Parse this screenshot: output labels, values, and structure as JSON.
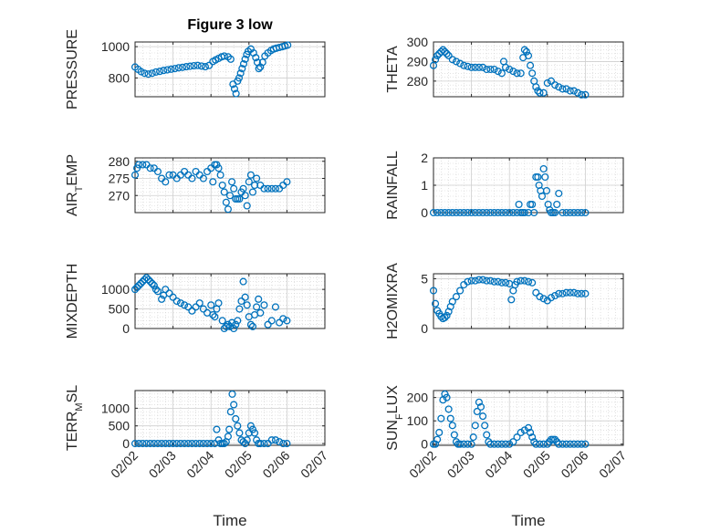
{
  "chart_data": [
    {
      "type": "scatter",
      "title": "Figure 3 low",
      "ylabel": "PRESSURE",
      "xlabel": "",
      "ylim": [
        680,
        1030
      ],
      "yticks": [
        800,
        1000
      ],
      "ytick_labels": [
        "800",
        "1000"
      ],
      "xlim": [
        "02/02",
        "02/07"
      ],
      "marker": "circle",
      "color": "#0072BD",
      "x": [
        0.0,
        0.08,
        0.16,
        0.25,
        0.35,
        0.45,
        0.55,
        0.65,
        0.75,
        0.85,
        0.95,
        1.05,
        1.15,
        1.25,
        1.35,
        1.45,
        1.55,
        1.65,
        1.75,
        1.85,
        1.95,
        2.05,
        2.12,
        2.2,
        2.28,
        2.35,
        2.45,
        2.52,
        2.58,
        2.62,
        2.66,
        2.7,
        2.74,
        2.78,
        2.82,
        2.86,
        2.9,
        2.94,
        2.98,
        3.05,
        3.12,
        3.18,
        3.22,
        3.26,
        3.3,
        3.36,
        3.42,
        3.5,
        3.58,
        3.65,
        3.72,
        3.8,
        3.88,
        3.95,
        4.02
      ],
      "y": [
        870,
        855,
        840,
        830,
        825,
        830,
        838,
        842,
        848,
        852,
        856,
        860,
        865,
        868,
        872,
        875,
        878,
        880,
        876,
        872,
        880,
        905,
        915,
        925,
        935,
        940,
        935,
        920,
        760,
        730,
        700,
        780,
        800,
        830,
        860,
        890,
        920,
        950,
        970,
        985,
        960,
        930,
        900,
        860,
        870,
        900,
        940,
        960,
        975,
        985,
        990,
        995,
        1000,
        1005,
        1010
      ]
    },
    {
      "type": "scatter",
      "title": "",
      "ylabel": "THETA",
      "xlabel": "",
      "ylim": [
        272,
        300
      ],
      "yticks": [
        280,
        290,
        300
      ],
      "ytick_labels": [
        "280",
        "290",
        "300"
      ],
      "xlim": [
        "02/02",
        "02/07"
      ],
      "marker": "circle",
      "color": "#0072BD",
      "x": [
        0.0,
        0.05,
        0.1,
        0.15,
        0.2,
        0.25,
        0.3,
        0.35,
        0.4,
        0.5,
        0.6,
        0.7,
        0.8,
        0.9,
        1.0,
        1.1,
        1.2,
        1.3,
        1.4,
        1.5,
        1.6,
        1.7,
        1.8,
        1.85,
        1.9,
        2.0,
        2.1,
        2.2,
        2.3,
        2.36,
        2.4,
        2.45,
        2.5,
        2.55,
        2.6,
        2.65,
        2.7,
        2.75,
        2.8,
        2.9,
        3.0,
        3.1,
        3.2,
        3.3,
        3.4,
        3.5,
        3.6,
        3.7,
        3.8,
        3.9,
        4.0
      ],
      "y": [
        288,
        291,
        293,
        294,
        295,
        296,
        295,
        294,
        293,
        291,
        290,
        289,
        288,
        287.5,
        287,
        287,
        287,
        287,
        286,
        286,
        286,
        285,
        284,
        290,
        287,
        286,
        285,
        284,
        284,
        292,
        296,
        295,
        293,
        288,
        284,
        280,
        277,
        275,
        274,
        274,
        279,
        280,
        278,
        277,
        276,
        276,
        275,
        275,
        274,
        273,
        273
      ]
    },
    {
      "type": "scatter",
      "title": "",
      "ylabel": "AIR_TEMP",
      "xlabel": "",
      "ylim": [
        265,
        281
      ],
      "yticks": [
        270,
        275,
        280
      ],
      "ytick_labels": [
        "270",
        "275",
        "280"
      ],
      "xlim": [
        "02/02",
        "02/07"
      ],
      "marker": "circle",
      "color": "#0072BD",
      "x": [
        0.0,
        0.05,
        0.1,
        0.2,
        0.3,
        0.4,
        0.5,
        0.6,
        0.7,
        0.8,
        0.9,
        1.0,
        1.1,
        1.2,
        1.3,
        1.4,
        1.5,
        1.6,
        1.7,
        1.8,
        1.9,
        2.0,
        2.05,
        2.1,
        2.15,
        2.2,
        2.25,
        2.3,
        2.35,
        2.4,
        2.45,
        2.5,
        2.55,
        2.6,
        2.65,
        2.7,
        2.75,
        2.8,
        2.85,
        2.9,
        2.95,
        3.0,
        3.05,
        3.1,
        3.15,
        3.2,
        3.3,
        3.4,
        3.5,
        3.6,
        3.7,
        3.8,
        3.9,
        4.0
      ],
      "y": [
        276,
        278,
        279,
        279,
        279,
        278,
        278,
        277,
        275,
        274,
        276,
        276,
        275,
        276,
        277,
        276,
        275,
        277,
        276,
        275,
        277,
        278,
        274,
        279,
        279,
        278,
        276,
        273,
        271,
        268,
        266,
        270,
        274,
        272,
        269,
        269,
        269,
        271,
        272,
        270,
        267,
        274,
        276,
        271,
        273,
        275,
        273,
        272,
        272,
        272,
        272,
        272,
        273,
        274
      ]
    },
    {
      "type": "scatter",
      "title": "",
      "ylabel": "RAINFALL",
      "xlabel": "",
      "ylim": [
        0,
        2
      ],
      "yticks": [
        0,
        1,
        2
      ],
      "ytick_labels": [
        "0",
        "1",
        "2"
      ],
      "xlim": [
        "02/02",
        "02/07"
      ],
      "marker": "circle",
      "color": "#0072BD",
      "x": [
        0.0,
        0.1,
        0.2,
        0.3,
        0.4,
        0.5,
        0.6,
        0.7,
        0.8,
        0.9,
        1.0,
        1.1,
        1.2,
        1.3,
        1.4,
        1.5,
        1.6,
        1.7,
        1.8,
        1.9,
        2.0,
        2.1,
        2.2,
        2.25,
        2.3,
        2.35,
        2.4,
        2.5,
        2.55,
        2.6,
        2.65,
        2.7,
        2.75,
        2.78,
        2.82,
        2.86,
        2.9,
        2.94,
        2.98,
        3.02,
        3.06,
        3.1,
        3.15,
        3.2,
        3.25,
        3.3,
        3.4,
        3.5,
        3.6,
        3.7,
        3.8,
        3.9,
        4.0
      ],
      "y": [
        0,
        0,
        0,
        0,
        0,
        0,
        0,
        0,
        0,
        0,
        0,
        0,
        0,
        0,
        0,
        0,
        0,
        0,
        0,
        0,
        0,
        0,
        0,
        0.3,
        0,
        0,
        0,
        0,
        0.3,
        0.3,
        0,
        1.3,
        1.3,
        1.0,
        0.8,
        0.6,
        1.6,
        1.3,
        0.8,
        0.3,
        0.1,
        0,
        0,
        0,
        0.3,
        0.7,
        0,
        0,
        0,
        0,
        0,
        0,
        0
      ]
    },
    {
      "type": "scatter",
      "title": "",
      "ylabel": "MIXDEPTH",
      "xlabel": "",
      "ylim": [
        0,
        1400
      ],
      "yticks": [
        0,
        500,
        1000
      ],
      "ytick_labels": [
        "0",
        "500",
        "1000"
      ],
      "xlim": [
        "02/02",
        "02/07"
      ],
      "marker": "circle",
      "color": "#0072BD",
      "x": [
        0.0,
        0.05,
        0.1,
        0.15,
        0.2,
        0.25,
        0.3,
        0.35,
        0.4,
        0.45,
        0.5,
        0.55,
        0.6,
        0.7,
        0.75,
        0.8,
        0.9,
        1.0,
        1.1,
        1.2,
        1.3,
        1.4,
        1.5,
        1.6,
        1.7,
        1.8,
        1.9,
        2.0,
        2.05,
        2.1,
        2.15,
        2.2,
        2.3,
        2.35,
        2.4,
        2.45,
        2.5,
        2.55,
        2.6,
        2.65,
        2.7,
        2.75,
        2.8,
        2.85,
        2.9,
        2.95,
        3.0,
        3.05,
        3.1,
        3.15,
        3.2,
        3.25,
        3.3,
        3.4,
        3.5,
        3.6,
        3.7,
        3.8,
        3.9,
        4.0
      ],
      "y": [
        1000,
        1050,
        1100,
        1150,
        1200,
        1250,
        1300,
        1250,
        1200,
        1150,
        1100,
        1000,
        950,
        750,
        850,
        1000,
        900,
        800,
        700,
        650,
        600,
        550,
        450,
        550,
        650,
        500,
        400,
        600,
        350,
        300,
        500,
        650,
        200,
        0,
        50,
        100,
        50,
        150,
        0,
        100,
        200,
        500,
        700,
        1200,
        800,
        600,
        300,
        100,
        50,
        350,
        550,
        750,
        400,
        600,
        100,
        200,
        550,
        150,
        250,
        200
      ]
    },
    {
      "type": "scatter",
      "title": "",
      "ylabel": "H2OMIXRA",
      "xlabel": "",
      "ylim": [
        0,
        5.5
      ],
      "yticks": [
        0,
        5
      ],
      "ytick_labels": [
        "0",
        "5"
      ],
      "xlim": [
        "02/02",
        "02/07"
      ],
      "marker": "circle",
      "color": "#0072BD",
      "x": [
        0.0,
        0.05,
        0.1,
        0.15,
        0.2,
        0.25,
        0.3,
        0.35,
        0.4,
        0.45,
        0.5,
        0.6,
        0.7,
        0.8,
        0.9,
        1.0,
        1.1,
        1.2,
        1.3,
        1.4,
        1.5,
        1.6,
        1.7,
        1.8,
        1.9,
        2.0,
        2.05,
        2.1,
        2.15,
        2.2,
        2.3,
        2.4,
        2.5,
        2.6,
        2.7,
        2.8,
        2.9,
        3.0,
        3.1,
        3.2,
        3.3,
        3.4,
        3.5,
        3.6,
        3.7,
        3.8,
        3.9,
        4.0
      ],
      "y": [
        3.8,
        2.5,
        1.8,
        1.5,
        1.2,
        1.0,
        1.1,
        1.3,
        1.7,
        2.2,
        2.7,
        3.2,
        3.8,
        4.4,
        4.7,
        4.8,
        4.8,
        4.9,
        4.9,
        4.8,
        4.8,
        4.7,
        4.7,
        4.6,
        4.6,
        4.5,
        2.9,
        3.8,
        4.4,
        4.7,
        4.8,
        4.8,
        4.7,
        4.6,
        3.6,
        3.2,
        3.0,
        2.8,
        3.1,
        3.3,
        3.5,
        3.5,
        3.6,
        3.6,
        3.6,
        3.5,
        3.5,
        3.5
      ]
    },
    {
      "type": "scatter",
      "title": "",
      "ylabel": "TERR_MSL",
      "xlabel": "Time",
      "ylim": [
        -50,
        1500
      ],
      "yticks": [
        0,
        500,
        1000
      ],
      "ytick_labels": [
        "0",
        "500",
        "1000"
      ],
      "xlim": [
        "02/02",
        "02/07"
      ],
      "xticks": [
        "02/02",
        "02/03",
        "02/04",
        "02/05",
        "02/06",
        "02/07"
      ],
      "marker": "circle",
      "color": "#0072BD",
      "x": [
        0.0,
        0.1,
        0.2,
        0.3,
        0.4,
        0.5,
        0.6,
        0.7,
        0.8,
        0.9,
        1.0,
        1.1,
        1.2,
        1.3,
        1.4,
        1.5,
        1.6,
        1.7,
        1.8,
        1.9,
        2.0,
        2.1,
        2.15,
        2.2,
        2.25,
        2.3,
        2.35,
        2.4,
        2.45,
        2.48,
        2.52,
        2.56,
        2.6,
        2.65,
        2.7,
        2.75,
        2.8,
        2.85,
        2.9,
        2.95,
        3.0,
        3.05,
        3.1,
        3.15,
        3.2,
        3.25,
        3.3,
        3.4,
        3.5,
        3.6,
        3.7,
        3.8,
        3.9,
        4.0
      ],
      "y": [
        0,
        0,
        0,
        0,
        0,
        0,
        0,
        0,
        0,
        0,
        0,
        0,
        0,
        0,
        0,
        0,
        0,
        0,
        0,
        0,
        0,
        0,
        400,
        100,
        0,
        0,
        0,
        50,
        200,
        400,
        900,
        1400,
        1100,
        700,
        500,
        300,
        100,
        50,
        0,
        100,
        300,
        500,
        400,
        300,
        100,
        0,
        0,
        0,
        0,
        100,
        100,
        50,
        0,
        0
      ]
    },
    {
      "type": "scatter",
      "title": "",
      "ylabel": "SUN_FLUX",
      "xlabel": "Time",
      "ylim": [
        -5,
        230
      ],
      "yticks": [
        0,
        100,
        200
      ],
      "ytick_labels": [
        "0",
        "100",
        "200"
      ],
      "xlim": [
        "02/02",
        "02/07"
      ],
      "xticks": [
        "02/02",
        "02/03",
        "02/04",
        "02/05",
        "02/06",
        "02/07"
      ],
      "marker": "circle",
      "color": "#0072BD",
      "x": [
        0.0,
        0.05,
        0.1,
        0.15,
        0.2,
        0.25,
        0.3,
        0.35,
        0.4,
        0.45,
        0.5,
        0.55,
        0.6,
        0.65,
        0.7,
        0.8,
        0.9,
        1.0,
        1.05,
        1.1,
        1.15,
        1.2,
        1.25,
        1.3,
        1.35,
        1.4,
        1.45,
        1.5,
        1.6,
        1.7,
        1.8,
        1.9,
        2.0,
        2.1,
        2.2,
        2.3,
        2.4,
        2.5,
        2.55,
        2.6,
        2.65,
        2.7,
        2.8,
        2.9,
        3.0,
        3.05,
        3.1,
        3.15,
        3.2,
        3.25,
        3.3,
        3.4,
        3.5,
        3.6,
        3.7,
        3.8,
        3.9,
        4.0
      ],
      "y": [
        0,
        0,
        20,
        50,
        110,
        190,
        215,
        200,
        150,
        110,
        80,
        40,
        10,
        0,
        0,
        0,
        0,
        0,
        30,
        80,
        140,
        180,
        160,
        120,
        80,
        40,
        10,
        0,
        0,
        0,
        0,
        0,
        0,
        10,
        30,
        50,
        60,
        70,
        50,
        30,
        10,
        0,
        0,
        0,
        0,
        10,
        20,
        20,
        20,
        10,
        0,
        0,
        0,
        0,
        0,
        0,
        0,
        0
      ]
    }
  ]
}
